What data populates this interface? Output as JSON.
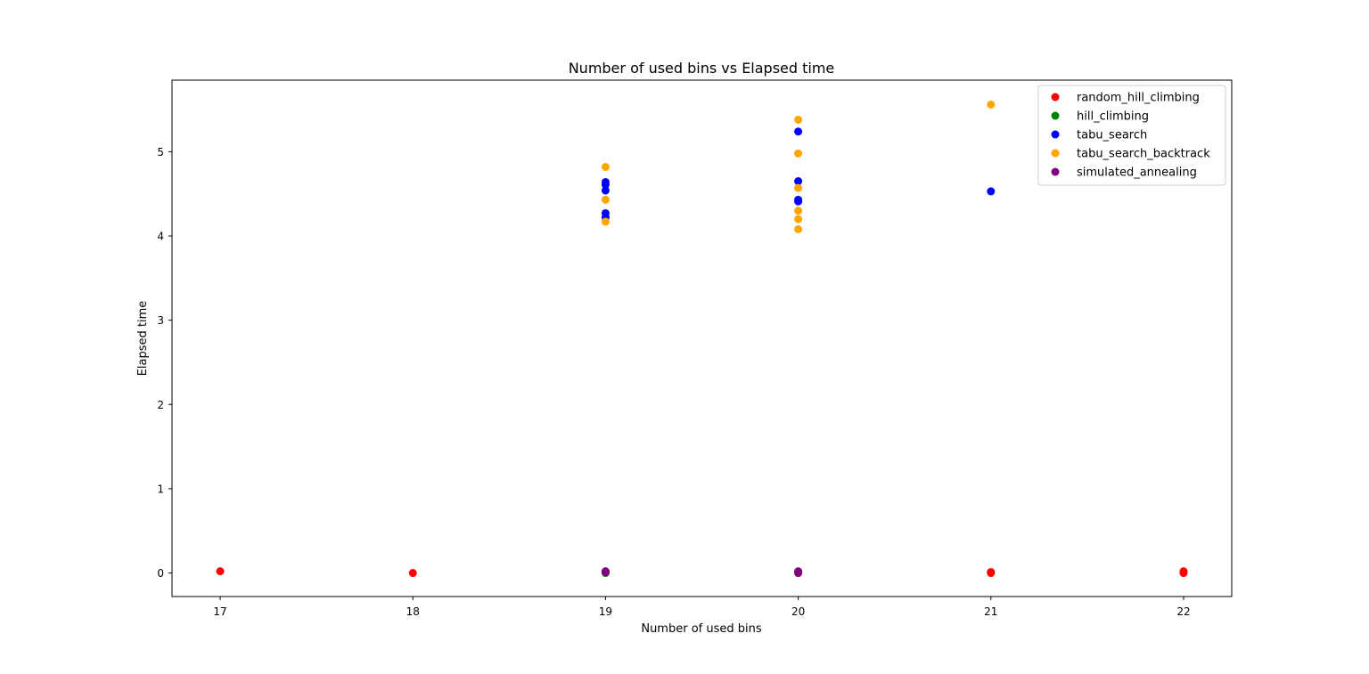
{
  "chart_data": {
    "type": "scatter",
    "title": "Number of used bins vs Elapsed time",
    "xlabel": "Number of used bins",
    "ylabel": "Elapsed time",
    "xlim": [
      16.75,
      22.25
    ],
    "ylim": [
      -0.28,
      5.85
    ],
    "xticks": [
      17,
      18,
      19,
      20,
      21,
      22
    ],
    "yticks": [
      0,
      1,
      2,
      3,
      4,
      5
    ],
    "grid": false,
    "legend_position": "upper-right",
    "series": [
      {
        "name": "random_hill_climbing",
        "color": "#ff0000",
        "points": [
          [
            17,
            0.02
          ],
          [
            18,
            0.0
          ],
          [
            19,
            0.01
          ],
          [
            20,
            0.01
          ],
          [
            21,
            0.01
          ],
          [
            21,
            0.0
          ],
          [
            22,
            0.02
          ],
          [
            22,
            0.0
          ]
        ]
      },
      {
        "name": "hill_climbing",
        "color": "#008000",
        "points": [
          [
            19,
            0.0
          ],
          [
            20,
            0.0
          ],
          [
            20,
            0.01
          ]
        ]
      },
      {
        "name": "tabu_search",
        "color": "#0000ff",
        "points": [
          [
            19,
            4.64
          ],
          [
            19,
            4.61
          ],
          [
            19,
            4.54
          ],
          [
            19,
            4.27
          ],
          [
            19,
            4.22
          ],
          [
            20,
            5.24
          ],
          [
            20,
            4.65
          ],
          [
            20,
            4.43
          ],
          [
            20,
            4.41
          ],
          [
            21,
            4.53
          ]
        ]
      },
      {
        "name": "tabu_search_backtrack",
        "color": "#ffa500",
        "points": [
          [
            19,
            4.82
          ],
          [
            19,
            4.43
          ],
          [
            19,
            4.17
          ],
          [
            20,
            5.38
          ],
          [
            20,
            4.98
          ],
          [
            20,
            4.57
          ],
          [
            20,
            4.3
          ],
          [
            20,
            4.2
          ],
          [
            20,
            4.08
          ],
          [
            21,
            5.56
          ]
        ]
      },
      {
        "name": "simulated_annealing",
        "color": "#800080",
        "points": [
          [
            19,
            0.02
          ],
          [
            19,
            0.01
          ],
          [
            20,
            0.02
          ],
          [
            20,
            0.0
          ]
        ]
      }
    ]
  }
}
